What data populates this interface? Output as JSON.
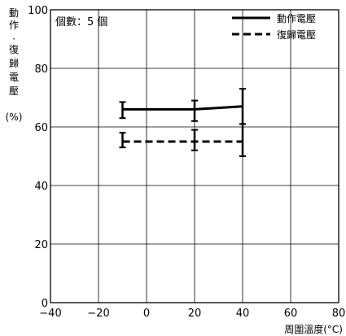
{
  "chart_data": {
    "type": "line",
    "title": "",
    "xlabel": "周圍溫度(°C)",
    "ylabel": [
      "動",
      "作",
      "·",
      "復",
      "歸",
      "電",
      "壓",
      "(%)"
    ],
    "xlim": [
      -40,
      80
    ],
    "ylim": [
      0,
      100
    ],
    "xticks": [
      "−40",
      "−20",
      "0",
      "20",
      "40",
      "60",
      "80"
    ],
    "yticks": [
      "0",
      "20",
      "40",
      "60",
      "80",
      "100"
    ],
    "grid": true,
    "annotation": "個數：5 個",
    "legend_position": "top-right",
    "x": [
      -10,
      20,
      40
    ],
    "series": [
      {
        "name": "動作電壓",
        "style": "solid",
        "values": [
          66,
          66,
          67
        ],
        "error_low": [
          63,
          62,
          61
        ],
        "error_high": [
          68.5,
          69,
          73
        ]
      },
      {
        "name": "復歸電壓",
        "style": "dashed",
        "values": [
          55,
          55,
          55
        ],
        "error_low": [
          53,
          52,
          50
        ],
        "error_high": [
          58,
          59,
          61
        ]
      }
    ],
    "colors": {
      "line": "#000000",
      "grid": "#000000"
    }
  }
}
